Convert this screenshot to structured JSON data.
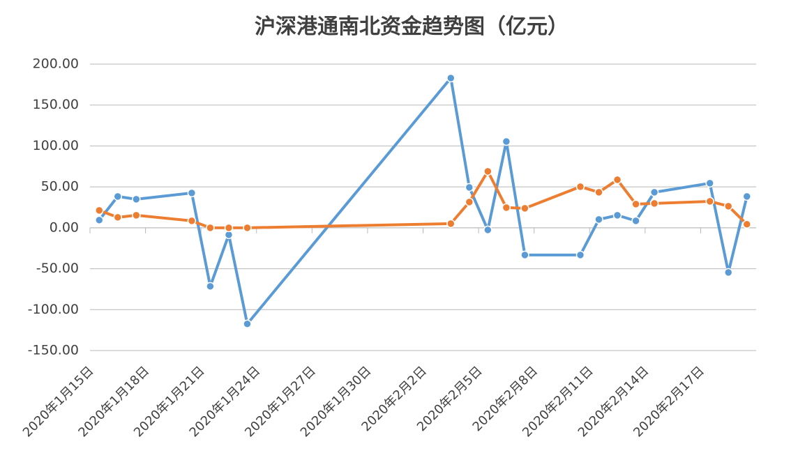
{
  "chart_data": {
    "type": "line",
    "title": "沪深港通南北资金趋势图（亿元）",
    "x": [
      "2020-01-15",
      "2020-01-16",
      "2020-01-17",
      "2020-01-20",
      "2020-01-21",
      "2020-01-22",
      "2020-01-23",
      "2020-02-03",
      "2020-02-04",
      "2020-02-05",
      "2020-02-06",
      "2020-02-07",
      "2020-02-10",
      "2020-02-11",
      "2020-02-12",
      "2020-02-13",
      "2020-02-14",
      "2020-02-17",
      "2020-02-18",
      "2020-02-19"
    ],
    "series": [
      {
        "color": "#5b9bd5",
        "values": [
          9.4,
          38.3,
          34.9,
          42.6,
          -71.5,
          -8.5,
          -117.4,
          183,
          49.4,
          -2.6,
          105.5,
          -33.2,
          -33.2,
          10.2,
          15.3,
          8.5,
          43.4,
          54.5,
          -54.5,
          38.3
        ]
      },
      {
        "color": "#ed7d31",
        "values": [
          21.3,
          12.8,
          15.3,
          8.5,
          0,
          0,
          0,
          5.1,
          31.5,
          69,
          24.7,
          23.8,
          50.2,
          43.4,
          58.7,
          28.9,
          29.8,
          32.3,
          26.4,
          4.3
        ]
      }
    ],
    "xlim": [
      "2020-01-15",
      "2020-02-20"
    ],
    "xticks": [
      {
        "value": "2020-01-15",
        "label": "2020年1月15日"
      },
      {
        "value": "2020-01-18",
        "label": "2020年1月18日"
      },
      {
        "value": "2020-01-21",
        "label": "2020年1月21日"
      },
      {
        "value": "2020-01-24",
        "label": "2020年1月24日"
      },
      {
        "value": "2020-01-27",
        "label": "2020年1月27日"
      },
      {
        "value": "2020-01-30",
        "label": "2020年1月30日"
      },
      {
        "value": "2020-02-02",
        "label": "2020年2月2日"
      },
      {
        "value": "2020-02-05",
        "label": "2020年2月5日"
      },
      {
        "value": "2020-02-08",
        "label": "2020年2月8日"
      },
      {
        "value": "2020-02-11",
        "label": "2020年2月11日"
      },
      {
        "value": "2020-02-14",
        "label": "2020年2月14日"
      },
      {
        "value": "2020-02-17",
        "label": "2020年2月17日"
      }
    ],
    "ylim": [
      -150,
      200
    ],
    "yticks": [
      {
        "value": -150,
        "label": "-150.00"
      },
      {
        "value": -100,
        "label": "-100.00"
      },
      {
        "value": -50,
        "label": "-50.00"
      },
      {
        "value": 0,
        "label": "0.00"
      },
      {
        "value": 50,
        "label": "50.00"
      },
      {
        "value": 100,
        "label": "100.00"
      },
      {
        "value": 150,
        "label": "150.00"
      },
      {
        "value": 200,
        "label": "200.00"
      }
    ],
    "grid": true
  }
}
